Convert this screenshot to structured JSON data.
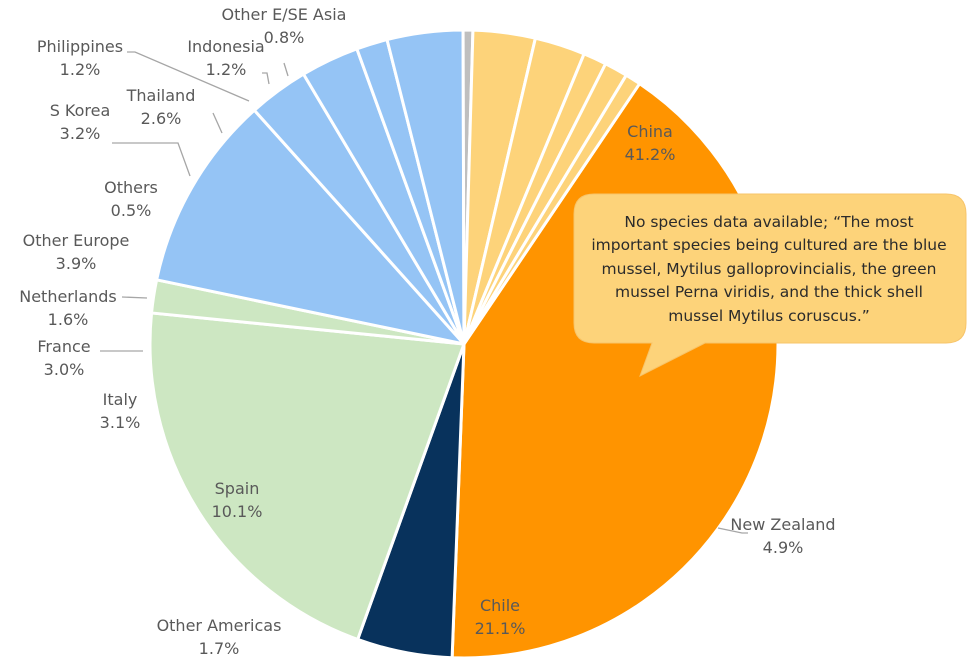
{
  "chart_data": {
    "type": "pie",
    "slices": [
      {
        "label": "China",
        "value": 41.2,
        "display": "41.2%",
        "color": "#FF9400"
      },
      {
        "label": "New Zealand",
        "value": 4.9,
        "display": "4.9%",
        "color": "#08325C"
      },
      {
        "label": "Chile",
        "value": 21.1,
        "display": "21.1%",
        "color": "#CDE7C2"
      },
      {
        "label": "Other Americas",
        "value": 1.7,
        "display": "1.7%",
        "color": "#CDE7C2"
      },
      {
        "label": "Spain",
        "value": 10.1,
        "display": "10.1%",
        "color": "#95C4F5"
      },
      {
        "label": "Italy",
        "value": 3.1,
        "display": "3.1%",
        "color": "#95C4F5"
      },
      {
        "label": "France",
        "value": 3.0,
        "display": "3.0%",
        "color": "#95C4F5"
      },
      {
        "label": "Netherlands",
        "value": 1.6,
        "display": "1.6%",
        "color": "#95C4F5"
      },
      {
        "label": "Other Europe",
        "value": 3.9,
        "display": "3.9%",
        "color": "#95C4F5"
      },
      {
        "label": "Others",
        "value": 0.5,
        "display": "0.5%",
        "color": "#BFBFBF"
      },
      {
        "label": "S Korea",
        "value": 3.2,
        "display": "3.2%",
        "color": "#FDD37A"
      },
      {
        "label": "Thailand",
        "value": 2.6,
        "display": "2.6%",
        "color": "#FDD37A"
      },
      {
        "label": "Philippines",
        "value": 1.2,
        "display": "1.2%",
        "color": "#FDD37A"
      },
      {
        "label": "Indonesia",
        "value": 1.2,
        "display": "1.2%",
        "color": "#FDD37A"
      },
      {
        "label": "Other E/SE Asia",
        "value": 0.8,
        "display": "0.8%",
        "color": "#FDD37A"
      }
    ]
  },
  "callout": {
    "text": "No species data available; “The most important species being cultured are the blue mussel, Mytilus galloprovincialis, the green mussel Perna viridis, and the thick shell mussel Mytilus coruscus.”",
    "color": "#FDD37A"
  }
}
